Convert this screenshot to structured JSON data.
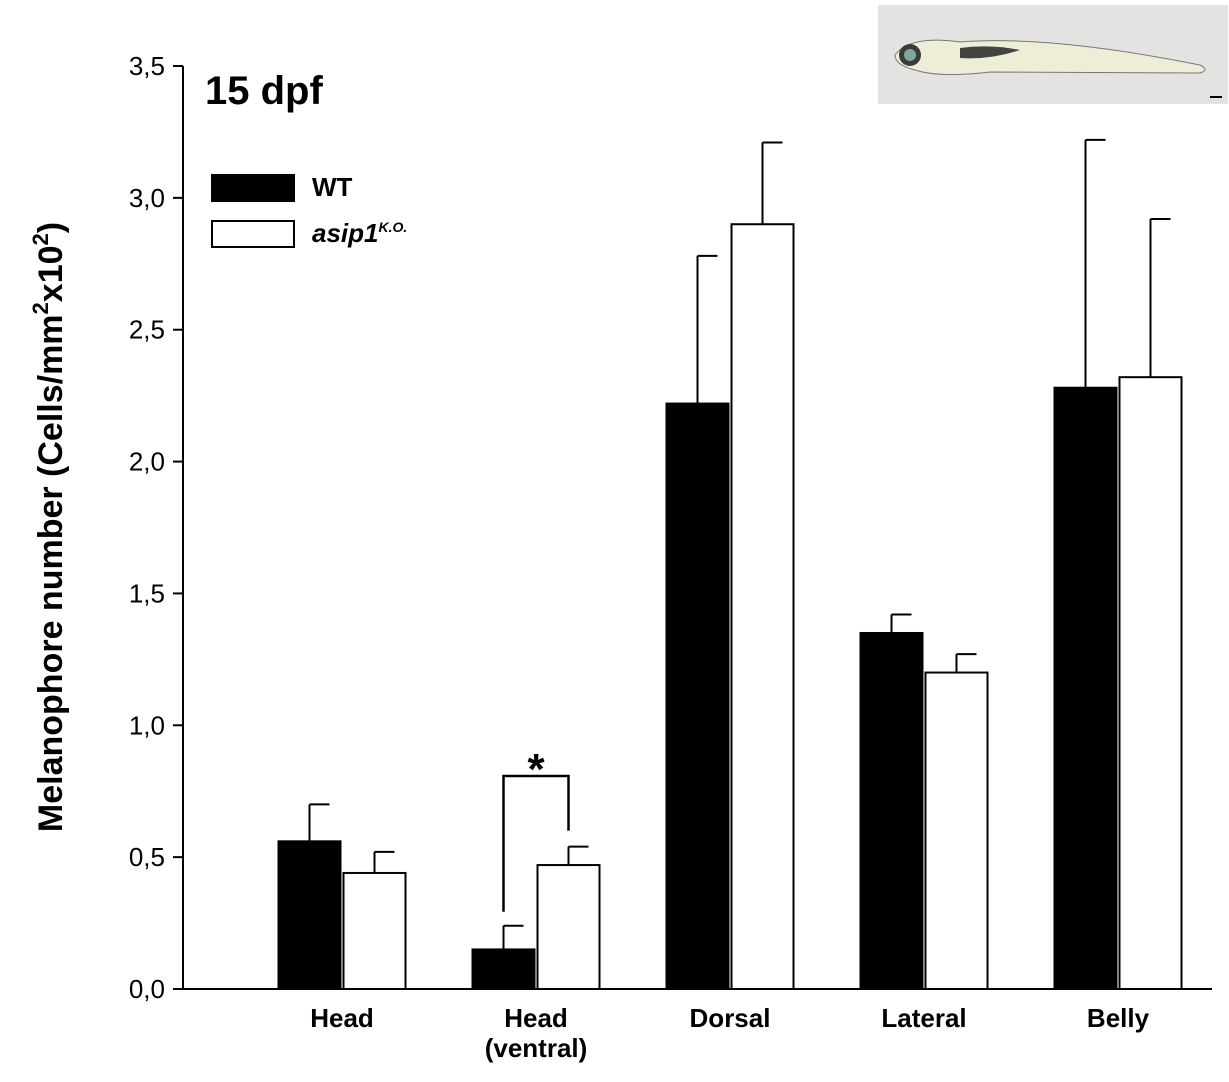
{
  "chart_data": {
    "type": "bar",
    "title": "15 dpf",
    "y_label": {
      "text": "Melanophore number (Cells/mm",
      "sup1": "2",
      "mid": "x10",
      "sup2": "2",
      "end": ")"
    },
    "categories": [
      "Head",
      "Head (ventral)",
      "Dorsal",
      "Lateral",
      "Belly"
    ],
    "series": [
      {
        "name": "WT",
        "color": "#000000",
        "values": [
          0.56,
          0.15,
          2.22,
          1.35,
          2.28
        ],
        "errors": [
          0.14,
          0.09,
          0.56,
          0.07,
          0.94
        ]
      },
      {
        "name": "asip1",
        "name_sup": "K.O.",
        "color": "#ffffff",
        "values": [
          0.44,
          0.47,
          2.9,
          1.2,
          2.32
        ],
        "errors": [
          0.08,
          0.07,
          0.31,
          0.07,
          0.6
        ]
      }
    ],
    "annotation": "*",
    "ylim": [
      0,
      3.5
    ],
    "yticks": [
      {
        "value": 0,
        "label": "0,0"
      },
      {
        "value": 0.5,
        "label": "0,5"
      },
      {
        "value": 1,
        "label": "1,0"
      },
      {
        "value": 1.5,
        "label": "1,5"
      },
      {
        "value": 2,
        "label": "2,0"
      },
      {
        "value": 2.5,
        "label": "2,5"
      },
      {
        "value": 3,
        "label": "3,0"
      },
      {
        "value": 3.5,
        "label": "3,5"
      }
    ],
    "legend": "upper-left",
    "grid": false
  }
}
